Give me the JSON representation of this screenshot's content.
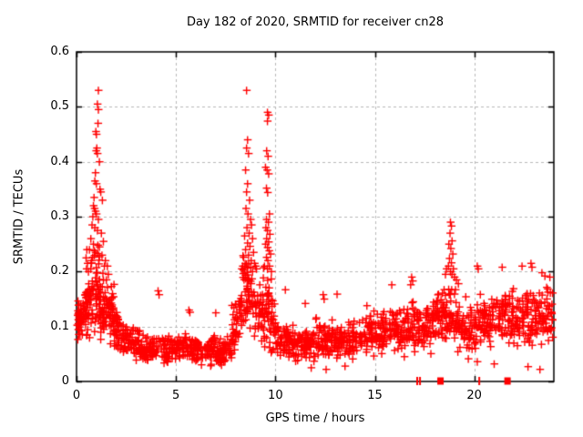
{
  "title": "Day 182 of 2020, SRMTID for receiver cn28",
  "axes": {
    "xlabel": "GPS time / hours",
    "ylabel": "SRMTID / TECUs"
  },
  "colors": {
    "marker": "#ff0000",
    "grid": "#b9b9b9",
    "border": "#000000",
    "background": "#ffffff",
    "text": "#000000"
  },
  "chart_data": {
    "type": "scatter",
    "title": "Day 182 of 2020, SRMTID for receiver cn28",
    "xlabel": "GPS time / hours",
    "ylabel": "SRMTID / TECUs",
    "xlim": [
      0,
      24
    ],
    "ylim": [
      0,
      0.6
    ],
    "xticks": [
      {
        "v": 0,
        "label": "0"
      },
      {
        "v": 5,
        "label": "5"
      },
      {
        "v": 10,
        "label": "10"
      },
      {
        "v": 15,
        "label": "15"
      },
      {
        "v": 20,
        "label": "20"
      }
    ],
    "yticks": [
      {
        "v": 0,
        "label": "0"
      },
      {
        "v": 0.1,
        "label": "0.1"
      },
      {
        "v": 0.2,
        "label": "0.2"
      },
      {
        "v": 0.3,
        "label": "0.3"
      },
      {
        "v": 0.4,
        "label": "0.4"
      },
      {
        "v": 0.5,
        "label": "0.5"
      },
      {
        "v": 0.6,
        "label": "0.6"
      }
    ],
    "grid": true,
    "grid_style": "dashed",
    "legend": "none",
    "marker": "plus",
    "marker_color": "#ff0000",
    "seed": 1337,
    "cloud_segment_format": "[x_start_hours, x_end_hours, n_points, center_y_start, center_y_end, spread, y_min, y_max]",
    "cloud_segments": [
      [
        0.0,
        0.4,
        42,
        0.115,
        0.125,
        0.034,
        0.055,
        0.19
      ],
      [
        0.4,
        0.8,
        48,
        0.13,
        0.16,
        0.048,
        0.06,
        0.27
      ],
      [
        0.8,
        1.4,
        75,
        0.16,
        0.15,
        0.062,
        0.07,
        0.33
      ],
      [
        1.4,
        1.9,
        52,
        0.145,
        0.115,
        0.04,
        0.065,
        0.23
      ],
      [
        1.9,
        2.4,
        46,
        0.1,
        0.085,
        0.028,
        0.045,
        0.16
      ],
      [
        2.4,
        3.2,
        58,
        0.076,
        0.07,
        0.022,
        0.03,
        0.135
      ],
      [
        3.2,
        4.2,
        68,
        0.066,
        0.06,
        0.02,
        0.028,
        0.115
      ],
      [
        4.2,
        5.4,
        80,
        0.06,
        0.063,
        0.02,
        0.025,
        0.115
      ],
      [
        5.4,
        6.2,
        56,
        0.068,
        0.062,
        0.022,
        0.025,
        0.125
      ],
      [
        6.2,
        7.0,
        56,
        0.057,
        0.06,
        0.02,
        0.02,
        0.12
      ],
      [
        7.0,
        7.8,
        56,
        0.055,
        0.062,
        0.02,
        0.02,
        0.115
      ],
      [
        7.8,
        8.3,
        42,
        0.09,
        0.135,
        0.036,
        0.04,
        0.205
      ],
      [
        8.3,
        8.9,
        52,
        0.165,
        0.15,
        0.055,
        0.07,
        0.3
      ],
      [
        8.9,
        9.5,
        48,
        0.135,
        0.13,
        0.05,
        0.06,
        0.27
      ],
      [
        9.5,
        9.95,
        42,
        0.14,
        0.11,
        0.05,
        0.05,
        0.26
      ],
      [
        9.95,
        11.0,
        76,
        0.085,
        0.072,
        0.026,
        0.03,
        0.15
      ],
      [
        11.0,
        12.0,
        70,
        0.065,
        0.07,
        0.023,
        0.025,
        0.13
      ],
      [
        12.0,
        13.0,
        70,
        0.08,
        0.076,
        0.026,
        0.03,
        0.16
      ],
      [
        13.0,
        14.2,
        80,
        0.075,
        0.08,
        0.025,
        0.03,
        0.14
      ],
      [
        14.2,
        15.4,
        80,
        0.085,
        0.088,
        0.028,
        0.035,
        0.155
      ],
      [
        15.4,
        16.6,
        80,
        0.09,
        0.096,
        0.03,
        0.04,
        0.165
      ],
      [
        16.6,
        17.5,
        66,
        0.1,
        0.1,
        0.034,
        0.04,
        0.19
      ],
      [
        17.5,
        18.4,
        66,
        0.105,
        0.115,
        0.035,
        0.045,
        0.185
      ],
      [
        18.4,
        19.1,
        56,
        0.13,
        0.118,
        0.045,
        0.05,
        0.2
      ],
      [
        19.1,
        20.1,
        70,
        0.105,
        0.1,
        0.035,
        0.035,
        0.2
      ],
      [
        20.1,
        21.1,
        70,
        0.11,
        0.115,
        0.036,
        0.05,
        0.2
      ],
      [
        21.1,
        22.1,
        70,
        0.12,
        0.12,
        0.038,
        0.05,
        0.21
      ],
      [
        22.1,
        23.1,
        70,
        0.116,
        0.12,
        0.038,
        0.04,
        0.205
      ],
      [
        23.1,
        23.95,
        60,
        0.125,
        0.12,
        0.038,
        0.05,
        0.195
      ]
    ],
    "peak_points": [
      [
        0.5,
        0.205
      ],
      [
        0.52,
        0.24
      ],
      [
        0.48,
        0.225
      ],
      [
        0.55,
        0.215
      ],
      [
        0.6,
        0.2
      ],
      [
        0.65,
        0.24
      ],
      [
        0.72,
        0.26
      ],
      [
        0.75,
        0.22
      ],
      [
        0.78,
        0.285
      ],
      [
        0.82,
        0.3
      ],
      [
        0.85,
        0.32
      ],
      [
        0.85,
        0.25
      ],
      [
        0.88,
        0.335
      ],
      [
        0.9,
        0.315
      ],
      [
        0.92,
        0.365
      ],
      [
        0.92,
        0.28
      ],
      [
        0.95,
        0.38
      ],
      [
        0.95,
        0.31
      ],
      [
        0.95,
        0.235
      ],
      [
        0.97,
        0.455
      ],
      [
        0.98,
        0.42
      ],
      [
        1.0,
        0.45
      ],
      [
        1.0,
        0.36
      ],
      [
        1.0,
        0.305
      ],
      [
        1.02,
        0.425
      ],
      [
        1.05,
        0.505
      ],
      [
        1.05,
        0.415
      ],
      [
        1.05,
        0.275
      ],
      [
        1.08,
        0.47
      ],
      [
        1.1,
        0.53
      ],
      [
        1.1,
        0.495
      ],
      [
        1.1,
        0.295
      ],
      [
        1.15,
        0.4
      ],
      [
        1.15,
        0.245
      ],
      [
        1.18,
        0.35
      ],
      [
        1.22,
        0.345
      ],
      [
        1.25,
        0.27
      ],
      [
        1.28,
        0.23
      ],
      [
        1.3,
        0.33
      ],
      [
        1.35,
        0.255
      ],
      [
        1.4,
        0.21
      ],
      [
        1.45,
        0.22
      ],
      [
        1.5,
        0.185
      ],
      [
        1.55,
        0.21
      ],
      [
        1.6,
        0.195
      ],
      [
        8.3,
        0.205
      ],
      [
        8.35,
        0.21
      ],
      [
        8.4,
        0.226
      ],
      [
        8.45,
        0.265
      ],
      [
        8.45,
        0.206
      ],
      [
        8.5,
        0.385
      ],
      [
        8.5,
        0.24
      ],
      [
        8.52,
        0.315
      ],
      [
        8.55,
        0.53
      ],
      [
        8.55,
        0.425
      ],
      [
        8.55,
        0.345
      ],
      [
        8.55,
        0.214
      ],
      [
        8.57,
        0.28
      ],
      [
        8.6,
        0.44
      ],
      [
        8.6,
        0.36
      ],
      [
        8.6,
        0.252
      ],
      [
        8.62,
        0.305
      ],
      [
        8.65,
        0.415
      ],
      [
        8.65,
        0.23
      ],
      [
        8.68,
        0.27
      ],
      [
        8.7,
        0.33
      ],
      [
        8.72,
        0.246
      ],
      [
        8.75,
        0.295
      ],
      [
        8.78,
        0.22
      ],
      [
        8.8,
        0.285
      ],
      [
        8.85,
        0.26
      ],
      [
        8.85,
        0.2
      ],
      [
        8.9,
        0.235
      ],
      [
        8.95,
        0.215
      ],
      [
        9.0,
        0.21
      ],
      [
        9.05,
        0.205
      ],
      [
        9.45,
        0.21
      ],
      [
        9.5,
        0.39
      ],
      [
        9.5,
        0.25
      ],
      [
        9.52,
        0.28
      ],
      [
        9.55,
        0.352
      ],
      [
        9.55,
        0.295
      ],
      [
        9.55,
        0.226
      ],
      [
        9.56,
        0.42
      ],
      [
        9.56,
        0.26
      ],
      [
        9.58,
        0.385
      ],
      [
        9.6,
        0.49
      ],
      [
        9.6,
        0.474
      ],
      [
        9.6,
        0.275
      ],
      [
        9.6,
        0.244
      ],
      [
        9.6,
        0.205
      ],
      [
        9.61,
        0.344
      ],
      [
        9.62,
        0.22
      ],
      [
        9.63,
        0.41
      ],
      [
        9.65,
        0.29
      ],
      [
        9.66,
        0.485
      ],
      [
        9.66,
        0.378
      ],
      [
        9.66,
        0.254
      ],
      [
        9.68,
        0.238
      ],
      [
        9.7,
        0.305
      ],
      [
        9.7,
        0.21
      ],
      [
        9.72,
        0.268
      ],
      [
        9.76,
        0.232
      ],
      [
        9.8,
        0.2
      ],
      [
        18.55,
        0.195
      ],
      [
        18.6,
        0.205
      ],
      [
        18.7,
        0.21
      ],
      [
        18.72,
        0.25
      ],
      [
        18.75,
        0.224
      ],
      [
        18.78,
        0.27
      ],
      [
        18.8,
        0.29
      ],
      [
        18.8,
        0.2
      ],
      [
        18.82,
        0.242
      ],
      [
        18.85,
        0.283
      ],
      [
        18.85,
        0.216
      ],
      [
        18.88,
        0.256
      ],
      [
        18.88,
        0.195
      ],
      [
        18.92,
        0.232
      ],
      [
        18.95,
        0.205
      ],
      [
        19.0,
        0.19
      ],
      [
        19.1,
        0.185
      ],
      [
        19.2,
        0.178
      ],
      [
        4.1,
        0.165
      ],
      [
        4.15,
        0.158
      ],
      [
        5.65,
        0.13
      ],
      [
        5.7,
        0.126
      ],
      [
        7.0,
        0.125
      ],
      [
        10.5,
        0.167
      ],
      [
        11.5,
        0.142
      ],
      [
        12.4,
        0.158
      ],
      [
        12.45,
        0.15
      ],
      [
        13.1,
        0.159
      ],
      [
        14.6,
        0.138
      ],
      [
        15.85,
        0.176
      ],
      [
        16.8,
        0.176
      ],
      [
        16.85,
        0.19
      ],
      [
        16.9,
        0.183
      ],
      [
        20.15,
        0.21
      ],
      [
        20.2,
        0.205
      ],
      [
        21.4,
        0.208
      ],
      [
        22.4,
        0.21
      ],
      [
        22.85,
        0.215
      ],
      [
        22.9,
        0.208
      ],
      [
        23.4,
        0.198
      ],
      [
        23.55,
        0.192
      ],
      [
        23.8,
        0.19
      ],
      [
        11.8,
        0.025
      ],
      [
        12.55,
        0.022
      ],
      [
        13.5,
        0.028
      ],
      [
        20.15,
        0.036
      ],
      [
        21.0,
        0.032
      ],
      [
        22.7,
        0.027
      ],
      [
        23.3,
        0.022
      ]
    ],
    "zero_axis_marks": [
      {
        "x": 17.13,
        "style": "tick"
      },
      {
        "x": 17.27,
        "style": "tick"
      },
      {
        "x": 18.3,
        "style": "square"
      },
      {
        "x": 20.25,
        "style": "tick"
      },
      {
        "x": 21.67,
        "style": "square"
      }
    ]
  }
}
